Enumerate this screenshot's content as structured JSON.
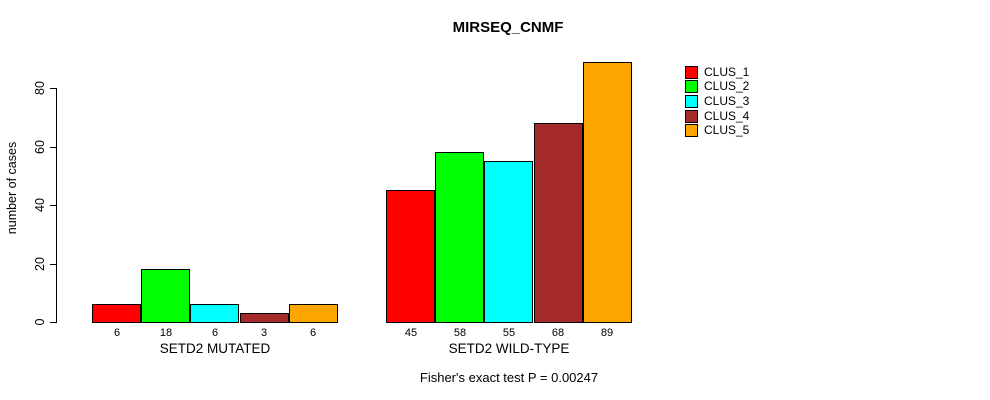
{
  "title": "MIRSEQ_CNMF",
  "caption": "Fisher's exact test P = 0.00247",
  "y_axis": {
    "label": "number of cases",
    "tick_values": [
      0,
      20,
      40,
      60,
      80
    ]
  },
  "legend": {
    "entries": [
      {
        "label": "CLUS_1",
        "color": "#FF0000"
      },
      {
        "label": "CLUS_2",
        "color": "#00FF00"
      },
      {
        "label": "CLUS_3",
        "color": "#00FFFF"
      },
      {
        "label": "CLUS_4",
        "color": "#A52A2A"
      },
      {
        "label": "CLUS_5",
        "color": "#FFA500"
      }
    ]
  },
  "chart_data": {
    "type": "bar",
    "categories": [
      "SETD2 MUTATED",
      "SETD2 WILD-TYPE"
    ],
    "series": [
      {
        "name": "CLUS_1",
        "color": "#FF0000",
        "values": [
          6,
          45
        ]
      },
      {
        "name": "CLUS_2",
        "color": "#00FF00",
        "values": [
          18,
          58
        ]
      },
      {
        "name": "CLUS_3",
        "color": "#00FFFF",
        "values": [
          6,
          55
        ]
      },
      {
        "name": "CLUS_4",
        "color": "#A52A2A",
        "values": [
          3,
          68
        ]
      },
      {
        "name": "CLUS_5",
        "color": "#FFA500",
        "values": [
          6,
          89
        ]
      }
    ],
    "title": "MIRSEQ_CNMF",
    "xlabel": "",
    "ylabel": "number of cases",
    "ylim": [
      0,
      89
    ],
    "y_ticks": [
      0,
      20,
      40,
      60,
      80
    ],
    "grid": false,
    "bar_value_labels_shown": true,
    "legend_position": "right-outside",
    "annotation": "Fisher's exact test P = 0.00247",
    "colors": {
      "bar_border": "#000000",
      "axis": "#000000",
      "text": "#000000",
      "background": "#FFFFFF"
    }
  }
}
